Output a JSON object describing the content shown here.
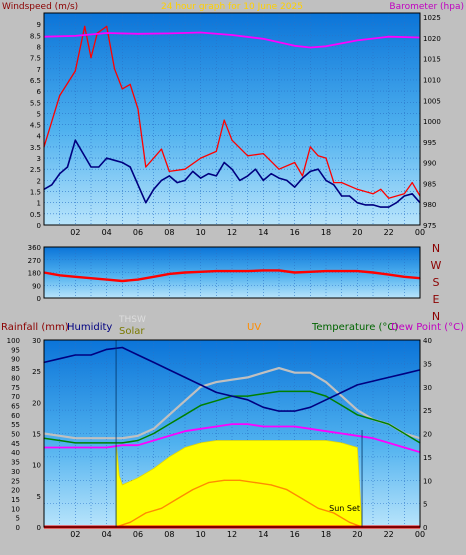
{
  "chart_data": [
    {
      "type": "line",
      "title": "24 hour graph for  10 June 2025",
      "left_axis": {
        "label": "Windspeed (m/s)",
        "range": [
          0,
          9.5
        ],
        "ticks": [
          "0",
          "0.5",
          "1",
          "1.5",
          "2",
          "2.5",
          "3",
          "3.5",
          "4",
          "4.5",
          "5",
          "5.5",
          "6",
          "6.5",
          "7",
          "7.5",
          "8",
          "8.5",
          "9"
        ]
      },
      "right_axis": {
        "label": "Barometer (hpa)",
        "range": [
          975,
          1026
        ],
        "ticks": [
          "975",
          "980",
          "985",
          "990",
          "995",
          "1000",
          "1005",
          "1010",
          "1015",
          "1020",
          "1025"
        ]
      },
      "x_axis": {
        "range": [
          0,
          24
        ],
        "ticks": [
          "02",
          "04",
          "06",
          "08",
          "10",
          "12",
          "14",
          "16",
          "18",
          "20",
          "22",
          "00"
        ]
      },
      "grid": true,
      "series": [
        {
          "name": "",
          "color": "#ff0000",
          "x": [
            0,
            1,
            2,
            2.6,
            3,
            3.4,
            4,
            4.5,
            5,
            5.5,
            6,
            6.5,
            7,
            7.5,
            8,
            9,
            10,
            11,
            11.5,
            12,
            13,
            14,
            15,
            16,
            16.5,
            17,
            17.5,
            18,
            18.5,
            19,
            20,
            21,
            21.5,
            22,
            23,
            23.5,
            24
          ],
          "y": [
            3.5,
            5.8,
            6.9,
            8.9,
            7.5,
            8.6,
            8.9,
            7.0,
            6.1,
            6.3,
            5.2,
            2.6,
            3.0,
            3.4,
            2.4,
            2.5,
            3.0,
            3.3,
            4.7,
            3.8,
            3.1,
            3.2,
            2.5,
            2.8,
            2.2,
            3.5,
            3.1,
            3.0,
            1.9,
            1.9,
            1.6,
            1.4,
            1.6,
            1.2,
            1.4,
            1.9,
            1.3
          ]
        },
        {
          "name": "",
          "color": "#000080",
          "x": [
            0,
            0.5,
            1,
            1.5,
            2,
            2.5,
            3,
            3.5,
            4,
            4.5,
            5,
            5.5,
            6,
            6.5,
            7,
            7.5,
            8,
            8.5,
            9,
            9.5,
            10,
            10.5,
            11,
            11.5,
            12,
            12.5,
            13,
            13.5,
            14,
            14.5,
            15,
            15.5,
            16,
            16.5,
            17,
            17.5,
            18,
            18.5,
            19,
            19.5,
            20,
            20.5,
            21,
            21.5,
            22,
            22.5,
            23,
            23.5,
            24
          ],
          "y": [
            1.6,
            1.8,
            2.3,
            2.6,
            3.8,
            3.2,
            2.6,
            2.6,
            3.0,
            2.9,
            2.8,
            2.6,
            1.8,
            1.0,
            1.6,
            2.0,
            2.2,
            1.9,
            2.0,
            2.4,
            2.1,
            2.3,
            2.2,
            2.8,
            2.5,
            2.0,
            2.2,
            2.5,
            2.0,
            2.3,
            2.1,
            2.0,
            1.7,
            2.1,
            2.4,
            2.5,
            2.0,
            1.8,
            1.3,
            1.3,
            1.0,
            0.9,
            0.9,
            0.8,
            0.8,
            1.0,
            1.3,
            1.4,
            1.0
          ]
        },
        {
          "name": "",
          "color": "#ff00ff",
          "axis": "right",
          "x": [
            0,
            2,
            4,
            6,
            8,
            10,
            12,
            14,
            16,
            17,
            18,
            20,
            22,
            24
          ],
          "y": [
            1020.3,
            1020.5,
            1021.2,
            1021.0,
            1021.1,
            1021.3,
            1020.7,
            1019.8,
            1018.1,
            1017.7,
            1018.0,
            1019.4,
            1020.3,
            1020.1
          ]
        }
      ]
    },
    {
      "type": "line",
      "title": "",
      "left_axis": {
        "label": "",
        "range": [
          0,
          360
        ],
        "ticks": [
          "0",
          "90",
          "180",
          "270",
          "360"
        ]
      },
      "right_labels": [
        "N",
        "W",
        "S",
        "E",
        "N"
      ],
      "x_axis": {
        "range": [
          0,
          24
        ],
        "ticks": []
      },
      "grid": true,
      "series": [
        {
          "name": "",
          "color": "#ff0000",
          "x": [
            0,
            1,
            2,
            3,
            4,
            5,
            6,
            7,
            8,
            9,
            10,
            11,
            12,
            13,
            14,
            15,
            16,
            17,
            18,
            19,
            20,
            21,
            22,
            23,
            24
          ],
          "y": [
            180,
            160,
            150,
            140,
            130,
            120,
            130,
            150,
            170,
            180,
            185,
            190,
            190,
            190,
            195,
            195,
            180,
            185,
            190,
            190,
            190,
            180,
            165,
            150,
            140
          ]
        }
      ]
    },
    {
      "type": "line",
      "title": "",
      "legend_labels": [
        "Rainfall (mm)",
        "Humidity",
        "THSW",
        "Solar",
        "UV",
        "Temperature (°C)",
        "Dew Point (°C)"
      ],
      "left_axis": {
        "label": "Rainfall (mm)",
        "range": [
          0,
          100
        ],
        "ticks": [
          "0",
          "5",
          "10",
          "15",
          "20",
          "25",
          "30",
          "35",
          "40",
          "45",
          "50",
          "55",
          "60",
          "65",
          "70",
          "75",
          "80",
          "85",
          "90",
          "95",
          "100"
        ]
      },
      "left_axis_2": {
        "label": "Humidity",
        "range": [
          0,
          30
        ],
        "ticks": [
          "0",
          "5",
          "10",
          "15",
          "20",
          "25",
          "30"
        ]
      },
      "right_axis": {
        "label": "Temperature (°C)",
        "range": [
          0,
          40
        ],
        "ticks": [
          "0",
          "5",
          "10",
          "15",
          "20",
          "25",
          "30",
          "35",
          "40"
        ]
      },
      "x_axis": {
        "range": [
          0,
          24
        ],
        "ticks": [
          "02",
          "04",
          "06",
          "08",
          "10",
          "12",
          "14",
          "16",
          "18",
          "20",
          "22",
          "00"
        ]
      },
      "annotation": "Sun Set",
      "grid": true,
      "series": [
        {
          "name": "Humidity",
          "color": "#000080",
          "axis": "humidity",
          "x": [
            0,
            1,
            2,
            3,
            4,
            5,
            6,
            7,
            8,
            9,
            10,
            11,
            12,
            13,
            14,
            15,
            16,
            17,
            18,
            19,
            20,
            21,
            22,
            23,
            24
          ],
          "y": [
            88,
            90,
            92,
            92,
            95,
            96,
            92,
            88,
            84,
            80,
            76,
            72,
            70,
            68,
            64,
            62,
            62,
            64,
            68,
            72,
            76,
            78,
            80,
            82,
            84
          ]
        },
        {
          "name": "Temperature (°C)",
          "color": "#008000",
          "axis": "right",
          "x": [
            0,
            1,
            2,
            3,
            4,
            5,
            6,
            7,
            8,
            9,
            10,
            11,
            12,
            13,
            14,
            15,
            16,
            17,
            18,
            19,
            20,
            21,
            22,
            23,
            24
          ],
          "y": [
            19,
            18.5,
            18,
            18,
            18,
            18,
            18.5,
            20,
            22,
            24,
            26,
            27,
            28,
            28,
            28.5,
            29,
            29,
            29,
            28,
            26,
            24,
            23,
            22,
            20,
            18
          ]
        },
        {
          "name": "THSW",
          "color": "#c0c0c0",
          "axis": "right",
          "x": [
            0,
            1,
            2,
            3,
            4,
            5,
            6,
            7,
            8,
            9,
            10,
            11,
            12,
            13,
            14,
            15,
            16,
            17,
            18,
            19,
            20,
            21,
            22,
            23,
            24
          ],
          "y": [
            20,
            19.5,
            19,
            19,
            19,
            19,
            19.5,
            21,
            24,
            27,
            30,
            31,
            31.5,
            32,
            33,
            34,
            33,
            33,
            31,
            28,
            25,
            23,
            22,
            20,
            19
          ]
        },
        {
          "name": "Dew Point (°C)",
          "color": "#ff00ff",
          "axis": "right",
          "x": [
            0,
            1,
            2,
            3,
            4,
            5,
            6,
            7,
            8,
            9,
            10,
            11,
            12,
            13,
            14,
            15,
            16,
            17,
            18,
            19,
            20,
            21,
            22,
            23,
            24
          ],
          "y": [
            17,
            17,
            17,
            17,
            17,
            17.5,
            17.5,
            18.5,
            19.5,
            20.5,
            21,
            21.5,
            22,
            22,
            21.5,
            21.5,
            21.5,
            21,
            20.5,
            20,
            19.5,
            19,
            18,
            17,
            16
          ]
        },
        {
          "name": "Solar",
          "color": "#ffff00",
          "axis": "right",
          "x": [
            4.6,
            4.8,
            5,
            6,
            7,
            8,
            9,
            10,
            11,
            12,
            13,
            14,
            15,
            16,
            17,
            18,
            19,
            20,
            20.3
          ],
          "y": [
            18,
            11,
            9,
            10.5,
            12.5,
            15,
            17,
            18,
            18.5,
            18.5,
            18.5,
            18.5,
            18.5,
            18.5,
            18.5,
            18.5,
            18,
            17,
            0
          ]
        },
        {
          "name": "UV",
          "color": "#ff8c00",
          "axis": "right",
          "x": [
            4.6,
            5.5,
            6.5,
            7.5,
            8.5,
            9.5,
            10.5,
            11.5,
            12.5,
            13.5,
            14.5,
            15.5,
            16.5,
            17.5,
            18.5,
            19.5,
            20.3
          ],
          "y": [
            0,
            1,
            3,
            4,
            6,
            8,
            9.5,
            10,
            10,
            9.5,
            9,
            8,
            6,
            4,
            3,
            1,
            0
          ]
        },
        {
          "name": "Rainfall (mm)",
          "color": "#ff0000",
          "axis": "left",
          "x": [
            0,
            24
          ],
          "y": [
            0,
            0
          ]
        }
      ]
    }
  ]
}
